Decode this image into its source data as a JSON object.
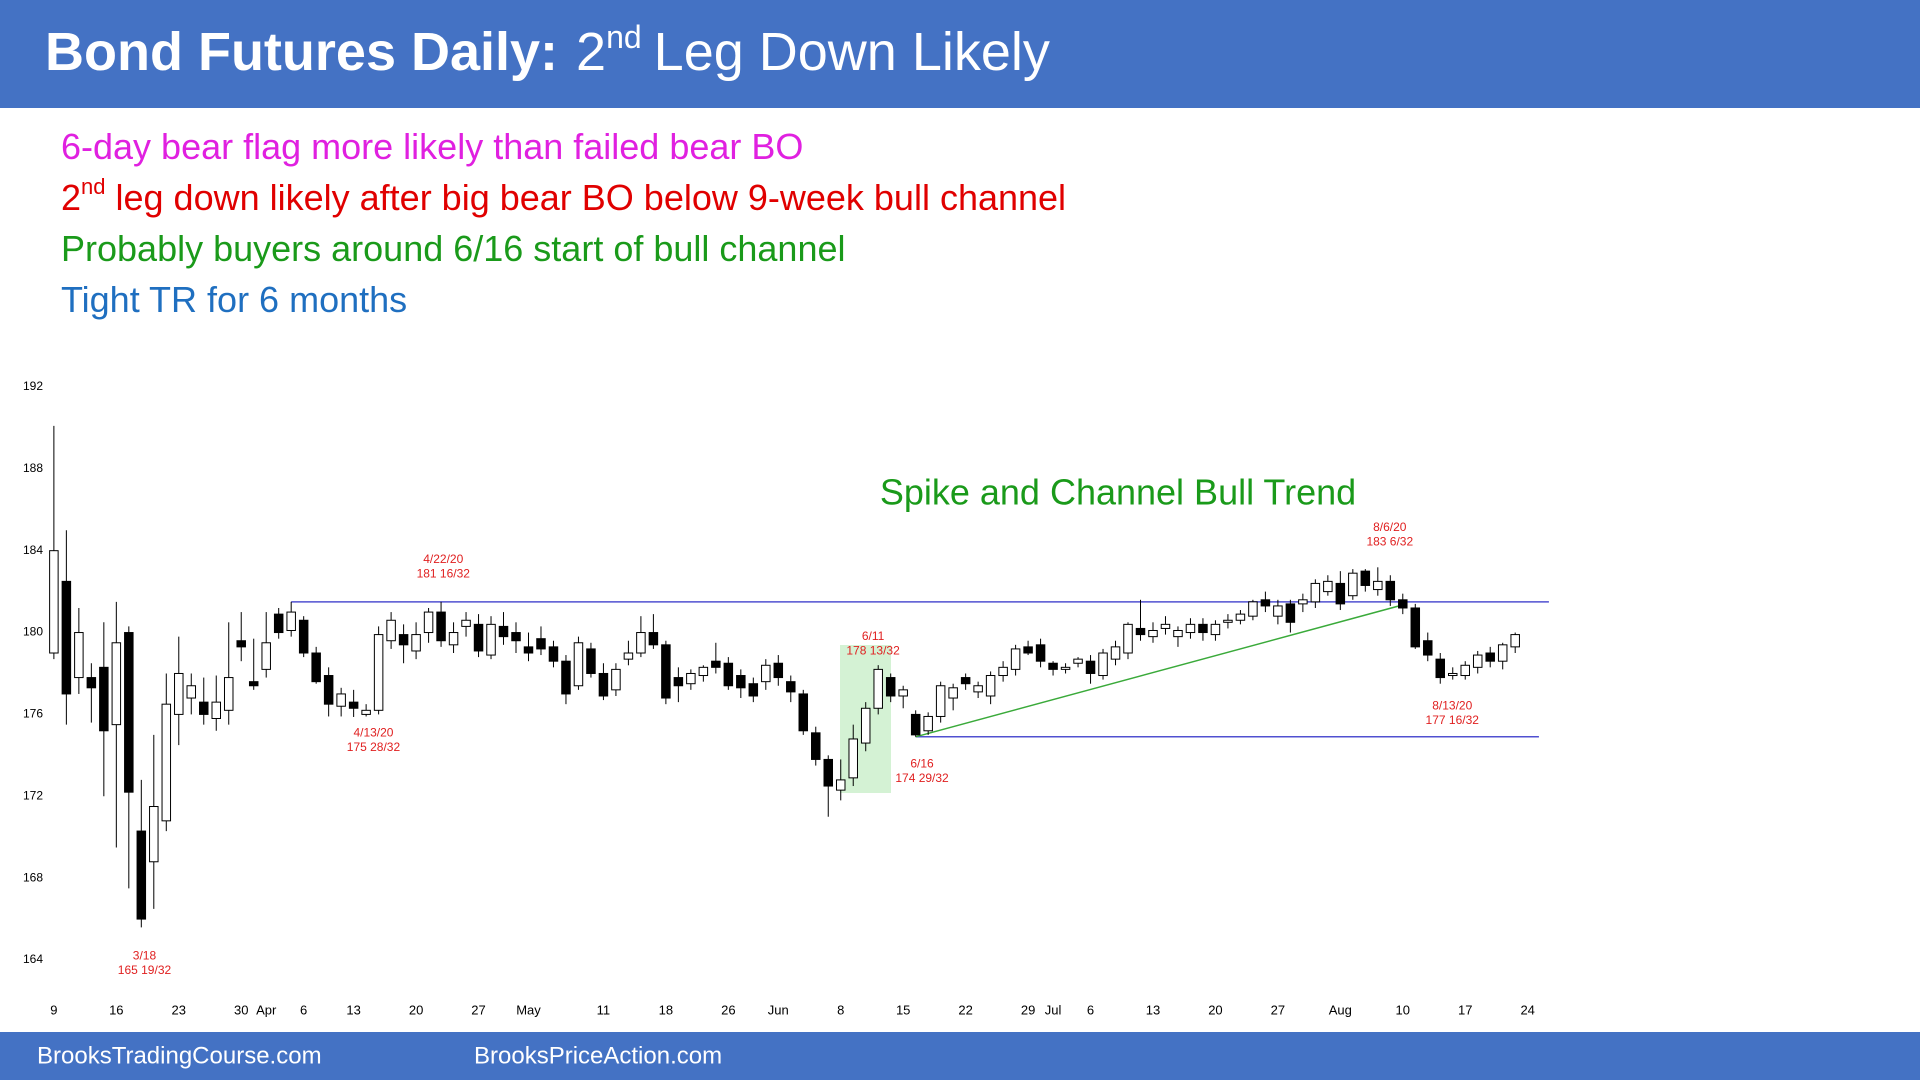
{
  "header": {
    "title_bold": "Bond Futures Daily:",
    "title_num": "2",
    "title_sup": "nd",
    "title_rest": "Leg Down Likely"
  },
  "notes": [
    {
      "text": "6-day bear flag more likely than failed bear BO",
      "color": "#e020e0"
    },
    {
      "num": "2",
      "sup": "nd",
      "text": "leg down likely after big bear BO below 9-week bull channel",
      "color": "#e00000"
    },
    {
      "text": "Probably buyers around 6/16 start of bull channel",
      "color": "#1a9a1a"
    },
    {
      "text": "Tight TR for 6 months",
      "color": "#1f6fc0"
    }
  ],
  "footer": [
    "BrooksTradingCourse.com",
    "BrooksPriceAction.com"
  ],
  "chart_data": {
    "type": "candlestick",
    "label": "Spike and Channel Bull Trend",
    "categories": [
      "9",
      null,
      null,
      null,
      null,
      "16",
      null,
      null,
      null,
      null,
      "23",
      null,
      null,
      null,
      null,
      "30",
      null,
      "Apr",
      null,
      null,
      "6",
      null,
      null,
      null,
      "13",
      null,
      null,
      null,
      null,
      "20",
      null,
      null,
      null,
      null,
      "27",
      null,
      null,
      null,
      "May",
      null,
      null,
      null,
      null,
      null,
      "11",
      null,
      null,
      null,
      null,
      "18",
      null,
      null,
      null,
      null,
      "26",
      null,
      null,
      null,
      "Jun",
      null,
      null,
      null,
      null,
      "8",
      null,
      null,
      null,
      null,
      "15",
      null,
      null,
      null,
      null,
      "22",
      null,
      null,
      null,
      null,
      "29",
      null,
      "Jul",
      null,
      null,
      "6",
      null,
      null,
      null,
      null,
      "13",
      null,
      null,
      null,
      null,
      "20",
      null,
      null,
      null,
      null,
      "27",
      null,
      null,
      null,
      null,
      "Aug",
      null,
      null,
      null,
      null,
      "10",
      null,
      null,
      null,
      null,
      "17",
      null,
      null,
      null,
      null,
      "24"
    ],
    "open": [
      179.0,
      182.5,
      177.8,
      177.8,
      178.3,
      175.5,
      180.0,
      170.3,
      168.8,
      170.8,
      176.0,
      176.8,
      176.6,
      175.8,
      176.2,
      179.6,
      177.6,
      178.2,
      180.9,
      180.1,
      180.6,
      179.0,
      177.9,
      176.4,
      176.6,
      176.0,
      176.2,
      179.6,
      179.9,
      179.1,
      180.0,
      181.0,
      179.4,
      180.3,
      180.4,
      178.9,
      180.3,
      180.0,
      179.3,
      179.7,
      179.3,
      178.6,
      177.4,
      179.2,
      178.0,
      177.2,
      178.7,
      179.0,
      180.0,
      179.4,
      177.8,
      177.5,
      177.9,
      178.6,
      178.5,
      177.9,
      177.5,
      177.6,
      178.5,
      177.6,
      177.0,
      175.1,
      173.8,
      172.3,
      172.9,
      174.6,
      176.3,
      177.8,
      176.9,
      176.0,
      175.2,
      175.9,
      176.8,
      177.8,
      177.1,
      176.9,
      177.9,
      178.2,
      179.3,
      179.4,
      178.5,
      178.2,
      178.5,
      178.6,
      177.9,
      178.7,
      179.0,
      180.2,
      179.8,
      180.2,
      179.8,
      180.0,
      180.4,
      179.9,
      180.5,
      180.6,
      180.8,
      181.6,
      180.8,
      181.4,
      181.4,
      181.5,
      182.0,
      182.4,
      181.8,
      183.0,
      182.1,
      182.5,
      181.6,
      181.2,
      179.6,
      178.7,
      177.9,
      177.9,
      178.3,
      179.0,
      178.6,
      179.3,
      null
    ],
    "high": [
      190.1,
      185.0,
      181.2,
      178.5,
      180.5,
      181.5,
      180.3,
      172.8,
      175.0,
      178.0,
      179.8,
      178.0,
      177.8,
      177.9,
      180.5,
      181.0,
      179.7,
      181.0,
      181.2,
      181.5,
      180.8,
      179.3,
      178.3,
      177.3,
      177.2,
      176.5,
      180.3,
      181.0,
      180.4,
      180.5,
      181.2,
      181.5,
      180.5,
      181.0,
      180.9,
      180.8,
      181.0,
      180.5,
      180.0,
      180.3,
      179.6,
      178.9,
      179.8,
      179.5,
      178.5,
      178.5,
      179.6,
      180.8,
      180.9,
      179.6,
      178.3,
      178.2,
      178.4,
      179.5,
      178.8,
      178.2,
      177.8,
      178.7,
      178.9,
      177.9,
      177.2,
      175.4,
      174.0,
      173.8,
      175.5,
      176.6,
      178.40625,
      178.0,
      177.4,
      176.2,
      176.1,
      177.6,
      177.5,
      178.0,
      177.6,
      178.1,
      178.6,
      179.4,
      179.6,
      179.7,
      178.6,
      178.5,
      178.8,
      178.9,
      179.2,
      179.6,
      180.5,
      181.6,
      180.5,
      180.8,
      180.3,
      180.7,
      180.7,
      180.6,
      180.9,
      181.1,
      181.6,
      182.0,
      181.6,
      181.6,
      181.9,
      182.6,
      182.8,
      183.0,
      183.1,
      183.1,
      183.1875,
      182.8,
      181.9,
      181.4,
      180.0,
      179.0,
      178.3,
      178.6,
      179.1,
      179.3,
      179.5,
      180.0,
      null
    ],
    "low": [
      178.7,
      175.5,
      177.0,
      175.6,
      172.0,
      169.5,
      167.5,
      165.59375,
      166.5,
      170.3,
      174.5,
      176.0,
      175.5,
      175.2,
      175.5,
      178.6,
      177.2,
      177.8,
      179.7,
      179.8,
      178.8,
      177.5,
      175.9,
      175.9,
      175.875,
      175.9,
      176.0,
      179.2,
      178.5,
      178.7,
      179.5,
      179.3,
      179.0,
      179.8,
      178.8,
      178.7,
      179.4,
      179.0,
      178.6,
      178.9,
      178.3,
      176.5,
      177.2,
      177.8,
      176.7,
      176.9,
      178.4,
      178.8,
      179.2,
      176.5,
      176.6,
      177.2,
      177.6,
      178.0,
      177.2,
      176.8,
      176.6,
      177.2,
      177.4,
      176.6,
      175.0,
      173.5,
      171.0,
      171.8,
      172.5,
      174.2,
      176.0,
      176.6,
      176.3,
      174.90625,
      175.0,
      175.6,
      176.2,
      177.2,
      176.8,
      176.5,
      177.6,
      177.9,
      178.9,
      178.3,
      177.9,
      178.0,
      178.3,
      177.5,
      177.7,
      178.4,
      178.7,
      179.6,
      179.5,
      179.9,
      179.3,
      179.7,
      179.6,
      179.6,
      180.2,
      180.4,
      180.6,
      181.0,
      180.4,
      180.0,
      181.0,
      181.2,
      181.8,
      181.1,
      181.6,
      182.0,
      181.8,
      181.3,
      180.9,
      179.2,
      178.6,
      177.5,
      177.7,
      177.7,
      178.0,
      178.3,
      178.2,
      179.0,
      null
    ],
    "close": [
      184.0,
      177.0,
      180.0,
      177.3,
      175.2,
      179.5,
      172.2,
      166.0,
      171.5,
      176.5,
      178.0,
      177.4,
      176.0,
      176.6,
      177.8,
      179.3,
      177.4,
      179.5,
      180.0,
      181.0,
      179.0,
      177.6,
      176.5,
      177.0,
      176.3,
      176.2,
      179.9,
      180.6,
      179.4,
      179.9,
      181.0,
      179.6,
      180.0,
      180.6,
      179.1,
      180.4,
      179.8,
      179.6,
      179.0,
      179.2,
      178.6,
      177.0,
      179.5,
      178.0,
      176.9,
      178.2,
      179.0,
      180.0,
      179.4,
      176.8,
      177.4,
      178.0,
      178.3,
      178.3,
      177.4,
      177.3,
      176.9,
      178.4,
      177.8,
      177.1,
      175.2,
      173.8,
      172.5,
      172.8,
      174.8,
      176.3,
      178.2,
      176.9,
      177.2,
      175.0,
      175.9,
      177.4,
      177.3,
      177.5,
      177.4,
      177.9,
      178.3,
      179.2,
      179.0,
      178.6,
      178.2,
      178.3,
      178.7,
      178.0,
      179.0,
      179.3,
      180.4,
      179.9,
      180.1,
      180.4,
      180.1,
      180.4,
      180.0,
      180.4,
      180.6,
      180.9,
      181.5,
      181.3,
      181.3,
      180.5,
      181.6,
      182.4,
      182.5,
      181.4,
      182.9,
      182.3,
      182.5,
      181.6,
      181.2,
      179.3,
      178.9,
      177.8,
      178.0,
      178.4,
      178.9,
      178.6,
      179.4,
      179.9,
      null
    ],
    "up_color": "#ffffff",
    "down_color": "#000000",
    "ylim": [
      164,
      192
    ],
    "yticks": [
      164,
      168,
      172,
      176,
      180,
      184,
      188,
      192
    ],
    "hlines": [
      {
        "value": 181.5,
        "color": "#5050d0"
      },
      {
        "value": 174.90625,
        "color": "#5050d0"
      }
    ],
    "trendline": {
      "values": [
        174.90625,
        181.35
      ],
      "color": "#3aaa3a"
    },
    "annotations": [
      [
        "3/18",
        "165 19/32"
      ],
      [
        "4/13/20",
        "175 28/32"
      ],
      [
        "4/22/20",
        "181 16/32"
      ],
      [
        "6/11",
        "178 13/32"
      ],
      [
        "6/16",
        "174 29/32"
      ],
      [
        "8/6/20",
        "183 6/32"
      ],
      [
        "8/13/20",
        "177 16/32"
      ]
    ]
  }
}
